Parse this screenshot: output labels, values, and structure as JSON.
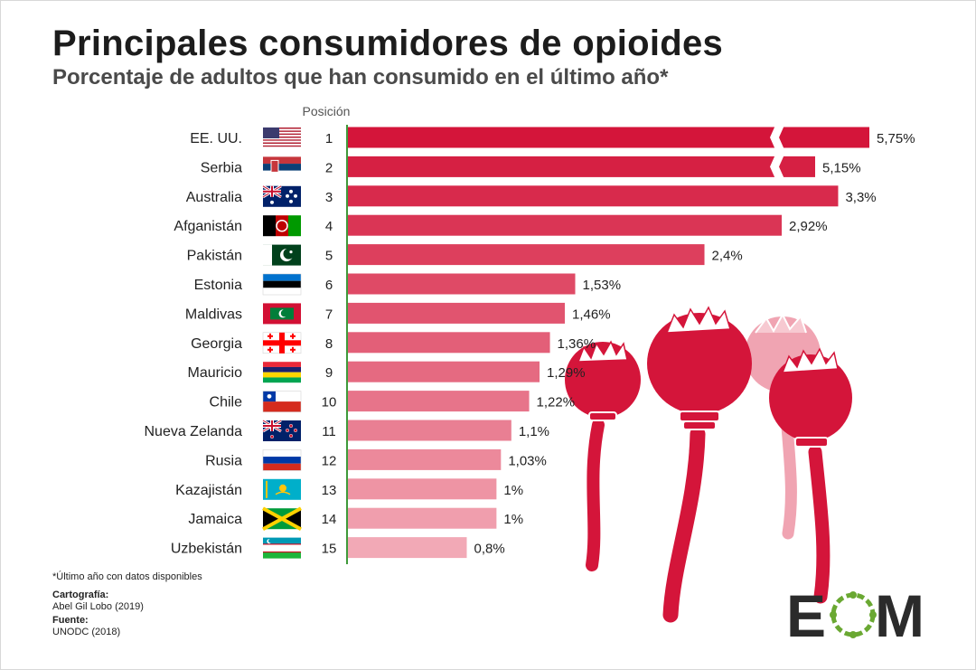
{
  "title": "Principales consumidores de opioides",
  "subtitle": "Porcentaje de adultos que han consumido en el último año*",
  "chart_data": {
    "type": "bar",
    "orientation": "horizontal",
    "title": "Principales consumidores de opioides",
    "subtitle": "Porcentaje de adultos que han consumido en el último año*",
    "rank_header": "Posición",
    "categories": [
      "EE. UU.",
      "Serbia",
      "Australia",
      "Afganistán",
      "Pakistán",
      "Estonia",
      "Maldivas",
      "Georgia",
      "Mauricio",
      "Chile",
      "Nueva Zelanda",
      "Rusia",
      "Kazajistán",
      "Jamaica",
      "Uzbekistán"
    ],
    "ranks": [
      "1",
      "2",
      "3",
      "4",
      "5",
      "6",
      "7",
      "8",
      "9",
      "10",
      "11",
      "12",
      "13",
      "14",
      "15"
    ],
    "values": [
      5.75,
      5.15,
      3.3,
      2.92,
      2.4,
      1.53,
      1.46,
      1.36,
      1.29,
      1.22,
      1.1,
      1.03,
      1,
      1,
      0.8
    ],
    "value_labels": [
      "5,75%",
      "5,15%",
      "3,3%",
      "2,92%",
      "2,4%",
      "1,53%",
      "1,46%",
      "1,36%",
      "1,29%",
      "1,22%",
      "1,1%",
      "1,03%",
      "1%",
      "1%",
      "0,8%"
    ],
    "broken_bars": [
      "EE. UU.",
      "Serbia"
    ],
    "xlabel": "",
    "ylabel": "",
    "grid": false,
    "legend": "none",
    "colors": {
      "bar_start": "#d4153a",
      "bar_end": "#f2a9b6",
      "axis_line": "#3f9a3a",
      "text": "#222222"
    }
  },
  "flags": [
    "us-flag-icon",
    "serbia-flag-icon",
    "australia-flag-icon",
    "afghanistan-flag-icon",
    "pakistan-flag-icon",
    "estonia-flag-icon",
    "maldives-flag-icon",
    "georgia-flag-icon",
    "mauritius-flag-icon",
    "chile-flag-icon",
    "new-zealand-flag-icon",
    "russia-flag-icon",
    "kazakhstan-flag-icon",
    "jamaica-flag-icon",
    "uzbekistan-flag-icon"
  ],
  "footer": {
    "note": "*Último año con datos disponibles",
    "cartography_label": "Cartografía:",
    "cartography_value": "Abel Gil Lobo (2019)",
    "source_label": "Fuente:",
    "source_value": "UNODC (2018)"
  },
  "logo": {
    "icon": "eom-logo",
    "text_e": "E",
    "text_m": "M",
    "color_dark": "#2b2b2b",
    "color_green": "#6aa832"
  },
  "illustration": {
    "icon": "poppy-pods-illustration",
    "color": "#d4153a",
    "color_light": "#f0a4b2"
  }
}
